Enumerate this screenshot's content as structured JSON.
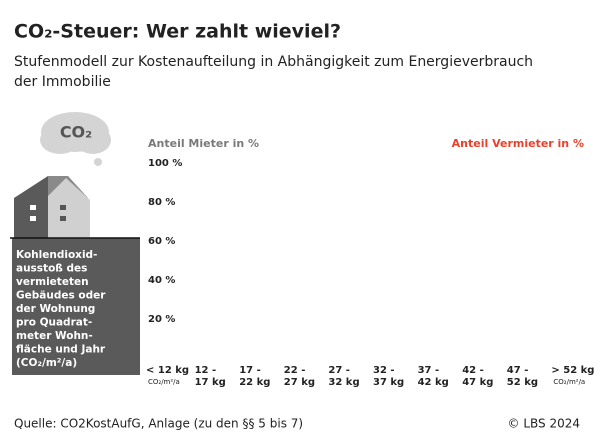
{
  "chart_data": {
    "type": "bar",
    "title": "CO₂-Steuer: Wer zahlt wieviel?",
    "subtitle": [
      "Stufenmodell zur Kostenaufteilung in Abhängigkeit zum Energieverbrauch",
      "der Immobilie"
    ],
    "cloud_label": "CO₂",
    "series": [
      {
        "name": "Anteil Mieter in %",
        "color": "#7a7a7a"
      },
      {
        "name": "Anteil Vermieter in %",
        "color": "#e8412c"
      }
    ],
    "axis_description": [
      "Kohlendioxid-",
      "ausstoß des",
      "vermieteten",
      "Gebäudes oder",
      "der Wohnung",
      "pro Quadrat-",
      "meter Wohn-",
      "fläche und Jahr",
      "(CO₂/m²/a)"
    ],
    "categories": [
      [
        "< 12 kg"
      ],
      [
        "12 -",
        "17 kg"
      ],
      [
        "17 -",
        "22 kg"
      ],
      [
        "22 -",
        "27 kg"
      ],
      [
        "27 -",
        "32 kg"
      ],
      [
        "32 -",
        "37 kg"
      ],
      [
        "37 -",
        "42 kg"
      ],
      [
        "42 -",
        "47 kg"
      ],
      [
        "47 -",
        "52 kg"
      ],
      [
        "> 52 kg"
      ]
    ],
    "unit_label": "CO₂/m²/a",
    "ylim": [
      0,
      100
    ],
    "yticks": [
      {
        "value": 20,
        "label": "20 %"
      },
      {
        "value": 40,
        "label": "40 %"
      },
      {
        "value": 60,
        "label": "60 %"
      },
      {
        "value": 80,
        "label": "80 %"
      },
      {
        "value": 100,
        "label": "100 %"
      }
    ],
    "source": "Quelle: CO2KostAufG, Anlage (zu den §§ 5 bis 7)",
    "copyright": "© LBS 2024"
  }
}
